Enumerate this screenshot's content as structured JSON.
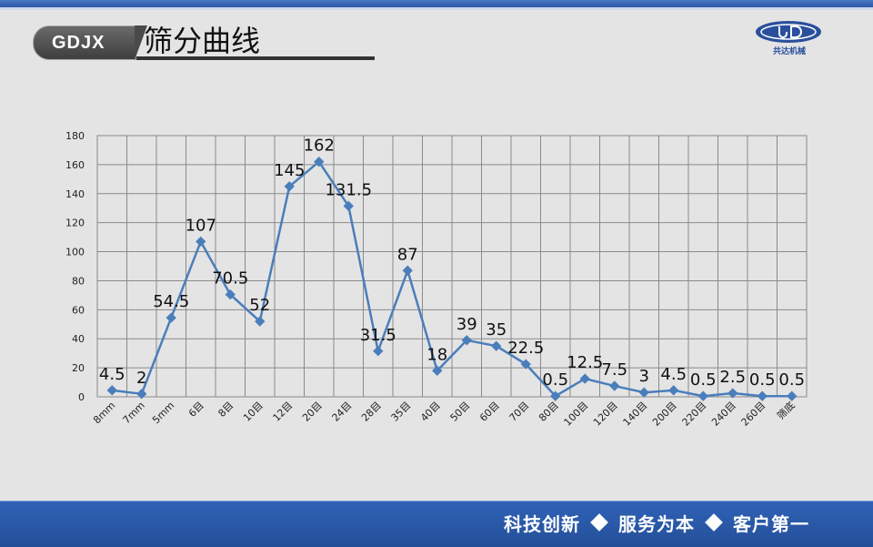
{
  "header": {
    "brand": "GDJX",
    "title": "筛分曲线",
    "logo_text": "共达机械"
  },
  "footer": {
    "slogans": [
      "科技创新",
      "服务为本",
      "客户第一"
    ]
  },
  "colors": {
    "series": "#4a7ebb",
    "accent": "#2f62b6"
  },
  "chart_data": {
    "type": "line",
    "title": "",
    "xlabel": "",
    "ylabel": "",
    "ylim": [
      0,
      180
    ],
    "yticks": [
      0,
      20,
      40,
      60,
      80,
      100,
      120,
      140,
      160,
      180
    ],
    "grid": true,
    "categories": [
      "8mm",
      "7mm",
      "5mm",
      "6目",
      "8目",
      "10目",
      "12目",
      "20目",
      "24目",
      "28目",
      "35目",
      "40目",
      "50目",
      "60目",
      "70目",
      "80目",
      "100目",
      "120目",
      "140目",
      "200目",
      "220目",
      "240目",
      "260目",
      "筛底"
    ],
    "labels": [
      "4.5",
      "2",
      "54.5",
      "107",
      "70.5",
      "52",
      "145",
      "162",
      "131.5",
      "31.5",
      "87",
      "18",
      "39",
      "35",
      "22.5",
      "0.5",
      "12.5",
      "7.5",
      "3",
      "4.5",
      "0.5",
      "2.5",
      "0.5",
      "0.5"
    ],
    "series": [
      {
        "values": [
          4.5,
          2,
          54.5,
          107,
          70.5,
          52,
          145,
          162,
          131.5,
          31.5,
          87,
          18,
          39,
          35,
          22.5,
          0.5,
          12.5,
          7.5,
          3,
          4.5,
          0.5,
          2.5,
          0.5,
          0.5
        ]
      }
    ]
  }
}
